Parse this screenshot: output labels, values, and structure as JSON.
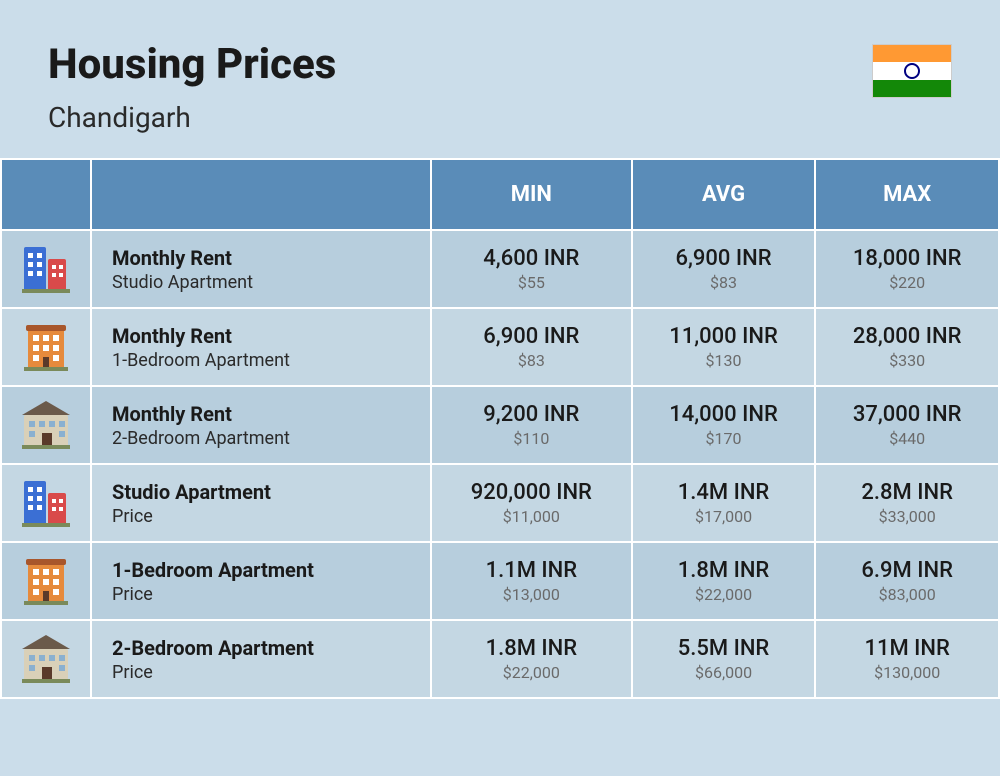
{
  "header": {
    "title": "Housing Prices",
    "subtitle": "Chandigarh"
  },
  "flag": {
    "top": "#ff9933",
    "middle": "#ffffff",
    "bottom": "#138808",
    "wheel": "#000080"
  },
  "columns": {
    "min": "MIN",
    "avg": "AVG",
    "max": "MAX"
  },
  "icons": {
    "studio": {
      "type": "twin-tower",
      "c1": "#3b6fd4",
      "c2": "#d94a4a"
    },
    "one_br": {
      "type": "block",
      "c1": "#e68a3c",
      "roof": "#a8562b"
    },
    "two_br": {
      "type": "mansion",
      "c1": "#d9d0b8",
      "roof": "#6b5a4a"
    }
  },
  "rows": [
    {
      "icon": "studio",
      "label_main": "Monthly Rent",
      "label_sub": "Studio Apartment",
      "min_main": "4,600 INR",
      "min_sub": "$55",
      "avg_main": "6,900 INR",
      "avg_sub": "$83",
      "max_main": "18,000 INR",
      "max_sub": "$220"
    },
    {
      "icon": "one_br",
      "label_main": "Monthly Rent",
      "label_sub": "1-Bedroom Apartment",
      "min_main": "6,900 INR",
      "min_sub": "$83",
      "avg_main": "11,000 INR",
      "avg_sub": "$130",
      "max_main": "28,000 INR",
      "max_sub": "$330"
    },
    {
      "icon": "two_br",
      "label_main": "Monthly Rent",
      "label_sub": "2-Bedroom Apartment",
      "min_main": "9,200 INR",
      "min_sub": "$110",
      "avg_main": "14,000 INR",
      "avg_sub": "$170",
      "max_main": "37,000 INR",
      "max_sub": "$440"
    },
    {
      "icon": "studio",
      "label_main": "Studio Apartment",
      "label_sub": "Price",
      "min_main": "920,000 INR",
      "min_sub": "$11,000",
      "avg_main": "1.4M INR",
      "avg_sub": "$17,000",
      "max_main": "2.8M INR",
      "max_sub": "$33,000"
    },
    {
      "icon": "one_br",
      "label_main": "1-Bedroom Apartment",
      "label_sub": "Price",
      "min_main": "1.1M INR",
      "min_sub": "$13,000",
      "avg_main": "1.8M INR",
      "avg_sub": "$22,000",
      "max_main": "6.9M INR",
      "max_sub": "$83,000"
    },
    {
      "icon": "two_br",
      "label_main": "2-Bedroom Apartment",
      "label_sub": "Price",
      "min_main": "1.8M INR",
      "min_sub": "$22,000",
      "avg_main": "5.5M INR",
      "avg_sub": "$66,000",
      "max_main": "11M INR",
      "max_sub": "$130,000"
    }
  ],
  "style": {
    "background": "#cbddea",
    "header_bg": "#5a8cb8",
    "header_fg": "#ffffff",
    "row_a_bg": "#b7cedd",
    "row_b_bg": "#c4d7e3",
    "title_color": "#1a1a1a",
    "val_sub_color": "#6a6a6a"
  }
}
